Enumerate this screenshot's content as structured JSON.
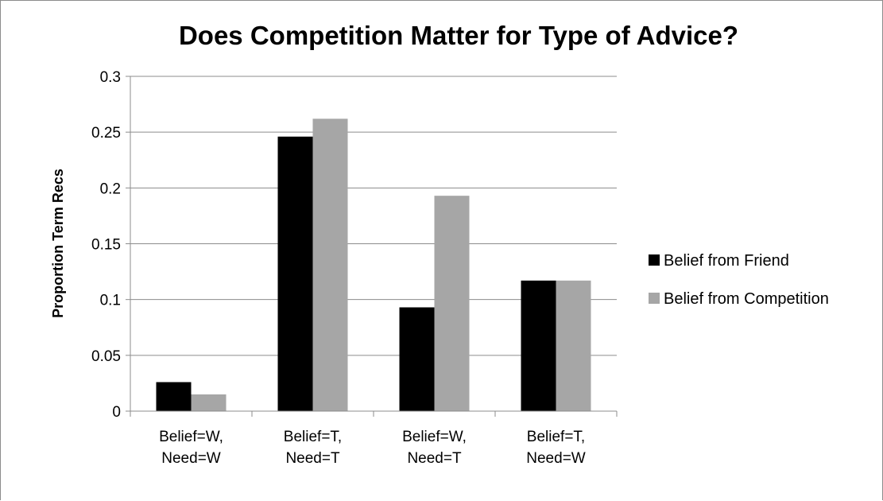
{
  "chart_data": {
    "type": "bar",
    "title": "Does Competition Matter for Type of Advice?",
    "xlabel": "",
    "ylabel": "Proportion Term Recs",
    "ylim": [
      0,
      0.3
    ],
    "yticks": [
      "0",
      "0.05",
      "0.1",
      "0.15",
      "0.2",
      "0.25",
      "0.3"
    ],
    "ytick_values": [
      0,
      0.05,
      0.1,
      0.15,
      0.2,
      0.25,
      0.3
    ],
    "grid": true,
    "legend_position": "right",
    "categories": [
      [
        "Belief=W,",
        "Need=W"
      ],
      [
        "Belief=T,",
        "Need=T"
      ],
      [
        "Belief=W,",
        "Need=T"
      ],
      [
        "Belief=T,",
        "Need=W"
      ]
    ],
    "series": [
      {
        "name": "Belief from Friend",
        "color": "#000000",
        "values": [
          0.026,
          0.246,
          0.093,
          0.117
        ]
      },
      {
        "name": "Belief from Competition",
        "color": "#a6a6a6",
        "values": [
          0.015,
          0.262,
          0.193,
          0.117
        ]
      }
    ]
  }
}
